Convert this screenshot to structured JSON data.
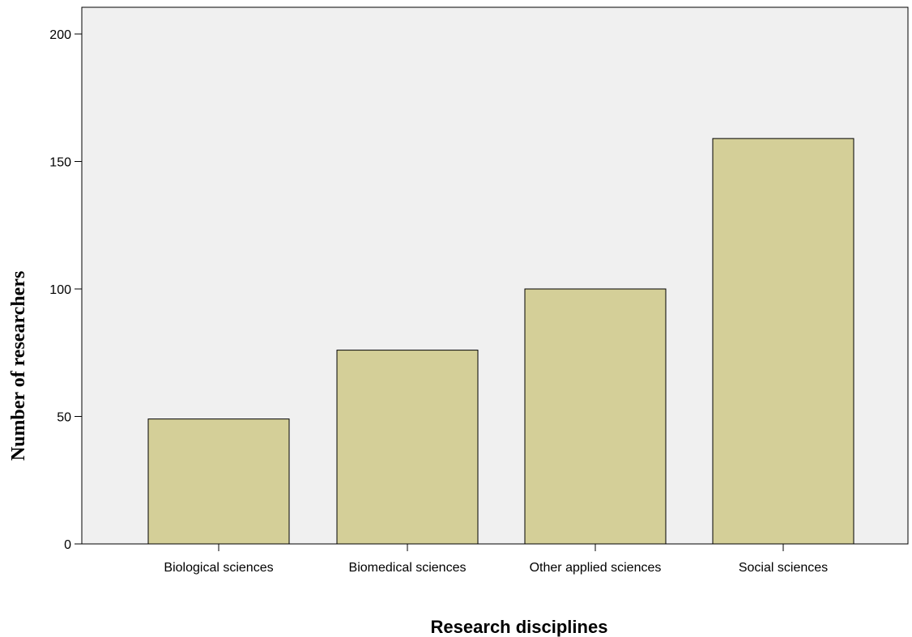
{
  "chart_data": {
    "type": "bar",
    "title": "",
    "xlabel": "Research disciplines",
    "ylabel": "Number of researchers",
    "categories": [
      "Biological sciences",
      "Biomedical sciences",
      "Other applied sciences",
      "Social sciences"
    ],
    "values": [
      49,
      76,
      100,
      159
    ],
    "ylim": [
      0,
      210
    ],
    "yticks": [
      0,
      50,
      100,
      150,
      200
    ],
    "grid": false,
    "legend": "none",
    "colors": {
      "plot_background": "#f0f0f0",
      "bar_fill": "#d4cf98",
      "bar_stroke": "#000000"
    }
  }
}
